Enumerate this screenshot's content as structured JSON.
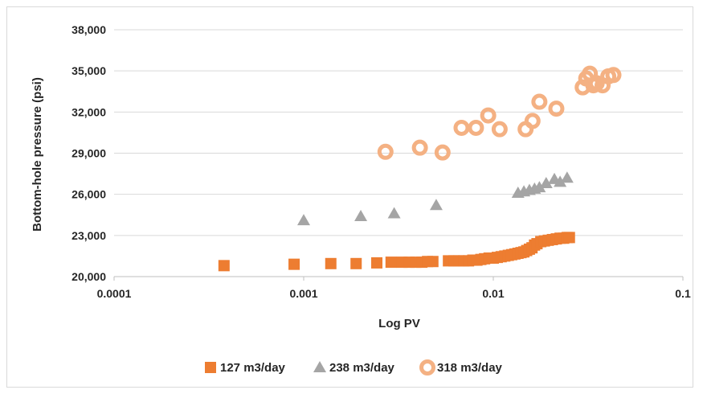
{
  "chart_data": {
    "type": "scatter",
    "title": "",
    "xlabel": "Log PV",
    "ylabel": "Bottom-hole pressure (psi)",
    "x_scale": "log",
    "xlim": [
      0.0001,
      0.1
    ],
    "ylim": [
      20000,
      38000
    ],
    "x_ticks": [
      0.0001,
      0.001,
      0.01,
      0.1
    ],
    "x_tick_labels": [
      "0.0001",
      "0.001",
      "0.01",
      "0.1"
    ],
    "y_ticks": [
      20000,
      23000,
      26000,
      29000,
      32000,
      35000,
      38000
    ],
    "y_tick_labels": [
      "20,000",
      "23,000",
      "26,000",
      "29,000",
      "32,000",
      "35,000",
      "38,000"
    ],
    "grid": "horizontal",
    "legend_position": "bottom",
    "series": [
      {
        "name": "127 m3/day",
        "marker": "square",
        "color": "#ed7d31",
        "x": [
          0.00038,
          0.00089,
          0.00139,
          0.00189,
          0.00243,
          0.00289,
          0.0033,
          0.0036,
          0.0039,
          0.0042,
          0.0045,
          0.0048,
          0.0058,
          0.0062,
          0.0066,
          0.007,
          0.0074,
          0.0078,
          0.0082,
          0.0086,
          0.009,
          0.0095,
          0.01,
          0.0105,
          0.011,
          0.0115,
          0.012,
          0.0125,
          0.013,
          0.0135,
          0.014,
          0.0145,
          0.015,
          0.0155,
          0.016,
          0.0165,
          0.017,
          0.0178,
          0.0186,
          0.0195,
          0.0205,
          0.0215,
          0.0225,
          0.0235,
          0.0245,
          0.0252
        ],
        "values": [
          20800,
          20900,
          20950,
          20950,
          21000,
          21050,
          21050,
          21050,
          21050,
          21050,
          21100,
          21100,
          21150,
          21150,
          21150,
          21150,
          21150,
          21200,
          21200,
          21250,
          21300,
          21350,
          21350,
          21400,
          21450,
          21500,
          21550,
          21600,
          21650,
          21700,
          21750,
          21800,
          21900,
          22000,
          22100,
          22300,
          22400,
          22550,
          22600,
          22650,
          22700,
          22750,
          22800,
          22800,
          22850,
          22850
        ]
      },
      {
        "name": "238 m3/day",
        "marker": "triangle",
        "color": "#a5a5a5",
        "x": [
          0.001,
          0.002,
          0.003,
          0.005,
          0.0135,
          0.0145,
          0.0155,
          0.0165,
          0.0175,
          0.019,
          0.021,
          0.0225,
          0.0245
        ],
        "values": [
          24100,
          24400,
          24600,
          25200,
          26100,
          26200,
          26300,
          26400,
          26500,
          26800,
          27100,
          26900,
          27200
        ]
      },
      {
        "name": "318 m3/day",
        "marker": "ring",
        "color": "#f4b183",
        "x": [
          0.0027,
          0.0041,
          0.0054,
          0.0068,
          0.0081,
          0.0094,
          0.0108,
          0.0148,
          0.0161,
          0.0175,
          0.0215,
          0.0296,
          0.0309,
          0.0323,
          0.0337,
          0.0351,
          0.0377,
          0.0404,
          0.043
        ],
        "values": [
          29100,
          29400,
          29050,
          30850,
          30850,
          31750,
          30750,
          30750,
          31350,
          32750,
          32250,
          33800,
          34450,
          34800,
          33950,
          34100,
          33950,
          34600,
          34700
        ]
      }
    ]
  }
}
